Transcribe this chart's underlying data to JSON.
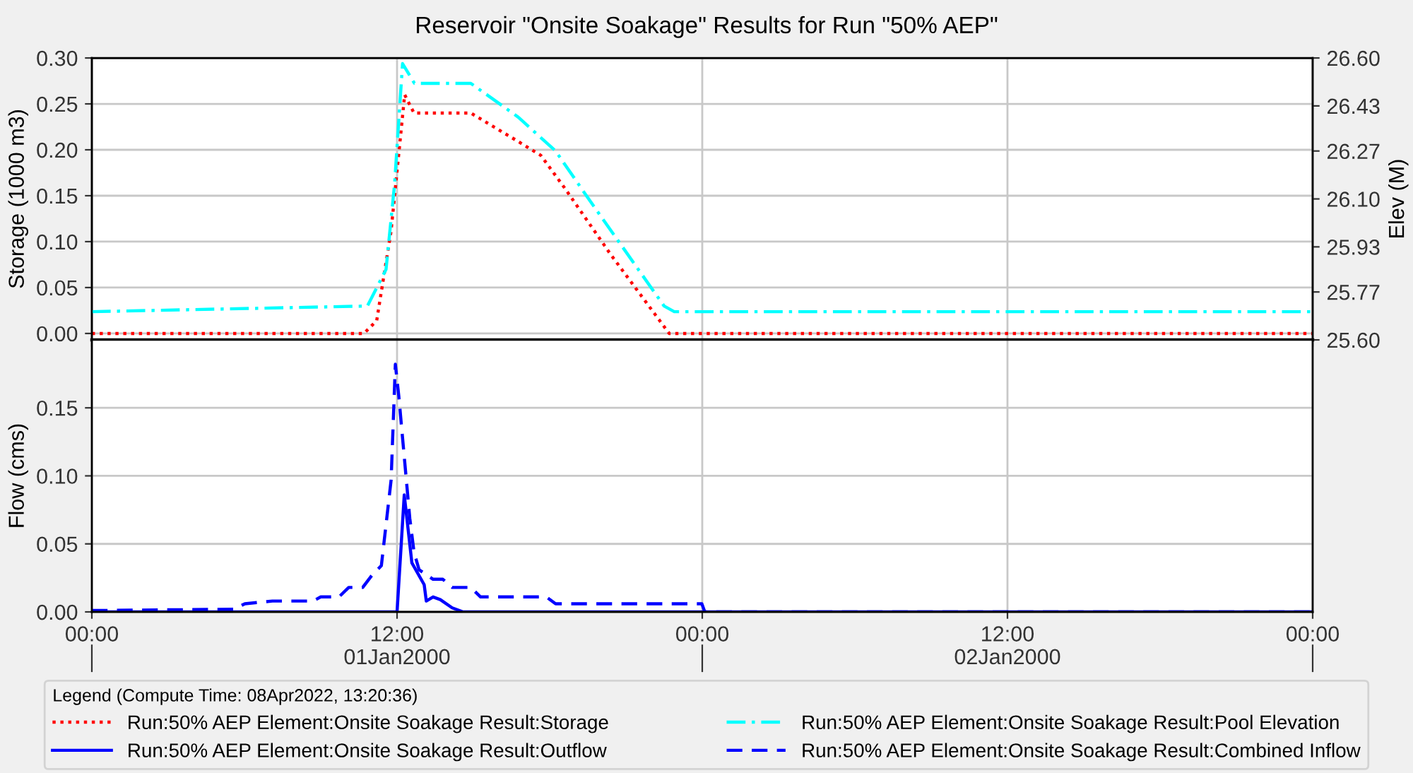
{
  "chart_data": [
    {
      "type": "line",
      "title": "Reservoir \"Onsite Soakage\" Results for Run \"50% AEP\"",
      "ylabel": "Storage (1000 m3)",
      "y2label": "Elev (M)",
      "xlim": [
        "2000-01-01T00:00",
        "2000-01-03T00:00"
      ],
      "xticks": [
        "2000-01-01T00:00",
        "2000-01-01T12:00",
        "2000-01-02T00:00",
        "2000-01-02T12:00",
        "2000-01-03T00:00"
      ],
      "ylim": [
        -0.007,
        0.3
      ],
      "yticks": [
        {
          "value": 0,
          "label": "0.00"
        },
        {
          "value": 0.05,
          "label": "0.05"
        },
        {
          "value": 0.1,
          "label": "0.10"
        },
        {
          "value": 0.15,
          "label": "0.15"
        },
        {
          "value": 0.2,
          "label": "0.20"
        },
        {
          "value": 0.25,
          "label": "0.25"
        },
        {
          "value": 0.3,
          "label": "0.30"
        }
      ],
      "y2lim": [
        25.6,
        26.6
      ],
      "y2ticks": [
        {
          "value": 25.6,
          "label": "25.60"
        },
        25.77,
        25.93,
        {
          "value": 26.1,
          "label": "26.10"
        },
        26.27,
        26.43,
        {
          "value": 26.6,
          "label": "26.60"
        }
      ],
      "tick_labels": "y",
      "grid": true,
      "legend": "bottom",
      "legend_title": "Legend (Compute Time: 08Apr2022, 13:20:36)",
      "series": [
        {
          "name": "Run:50% AEP Element:Onsite Soakage Result:Storage",
          "color": "#ff0000",
          "line_style": "dotted",
          "x": [
            "2000-01-01T00:00",
            "2000-01-01T10:42",
            "2000-01-01T11:12",
            "2000-01-01T11:46",
            "2000-01-01T12:18",
            "2000-01-01T12:40",
            "2000-01-01T14:54",
            "2000-01-01T16:46",
            "2000-01-01T17:39",
            "2000-01-01T18:36",
            "2000-01-01T20:24",
            "2000-01-01T22:42",
            "2000-01-03T00:00"
          ],
          "values": [
            0,
            0,
            0.014,
            0.112,
            0.26,
            0.24,
            0.24,
            0.209,
            0.194,
            0.158,
            0.086,
            0,
            0
          ]
        },
        {
          "name": "Run:50% AEP Element:Onsite Soakage Result:Pool Elevation",
          "color": "#00ffff",
          "line_style": "dashdot",
          "axis": "y2",
          "x": [
            "2000-01-01T00:00",
            "2000-01-01T10:50",
            "2000-01-01T11:34",
            "2000-01-01T11:54",
            "2000-01-01T12:13",
            "2000-01-01T12:41",
            "2000-01-01T14:54",
            "2000-01-01T16:46",
            "2000-01-01T18:14",
            "2000-01-01T19:32",
            "2000-01-01T22:30",
            "2000-01-01T22:54",
            "2000-01-03T00:00"
          ],
          "values": [
            25.7,
            25.72,
            25.85,
            26.15,
            26.58,
            26.51,
            26.51,
            26.39,
            26.27,
            26.1,
            25.72,
            25.7,
            25.7
          ]
        }
      ]
    },
    {
      "type": "line",
      "ylabel": "Flow (cms)",
      "xlim": [
        "2000-01-01T00:00",
        "2000-01-03T00:00"
      ],
      "xticks": [
        {
          "value": "2000-01-01T00:00",
          "label": "00:00"
        },
        {
          "value": "2000-01-01T12:00",
          "label": "12:00"
        },
        {
          "value": "2000-01-02T00:00",
          "label": "00:00"
        },
        {
          "value": "2000-01-02T12:00",
          "label": "12:00"
        },
        {
          "value": "2000-01-03T00:00",
          "label": "00:00"
        }
      ],
      "x2lim": [
        "2000-01-01T00:00",
        "2000-01-03T00:00"
      ],
      "x2ticks": [
        {
          "value": "2000-01-01T00:00",
          "label": null
        },
        {
          "value": "2000-01-01T12:00",
          "label": "01Jan2000"
        },
        {
          "value": "2000-01-02T00:00",
          "label": null
        },
        {
          "value": "2000-01-02T12:00",
          "label": "02Jan2000"
        },
        {
          "value": "2000-01-03T00:00",
          "label": null
        }
      ],
      "ylim": [
        0,
        0.2
      ],
      "yticks": [
        {
          "value": 0,
          "label": "0.00"
        },
        {
          "value": 0.05,
          "label": "0.05"
        },
        {
          "value": 0.1,
          "label": "0.10"
        },
        {
          "value": 0.15,
          "label": "0.15"
        }
      ],
      "grid": true,
      "legend": "bottom",
      "series": [
        {
          "name": "Run:50% AEP Element:Onsite Soakage Result:Outflow",
          "color": "#0000ff",
          "line_style": "solid",
          "x": [
            "2000-01-01T00:00",
            "2000-01-01T12:00",
            "2000-01-01T12:17",
            "2000-01-01T12:35",
            "2000-01-01T13:04",
            "2000-01-01T13:09",
            "2000-01-01T13:25",
            "2000-01-01T13:42",
            "2000-01-01T14:10",
            "2000-01-01T14:36",
            "2000-01-03T00:00"
          ],
          "values": [
            0,
            0,
            0.086,
            0.036,
            0.02,
            0.008,
            0.011,
            0.009,
            0.003,
            0,
            0
          ]
        },
        {
          "name": "Run:50% AEP Element:Onsite Soakage Result:Combined Inflow",
          "color": "#0000ff",
          "line_style": "dashed",
          "x": [
            "2000-01-01T00:00",
            "2000-01-01T05:36",
            "2000-01-01T06:01",
            "2000-01-01T07:06",
            "2000-01-01T08:42",
            "2000-01-01T09:00",
            "2000-01-01T09:43",
            "2000-01-01T10:06",
            "2000-01-01T10:39",
            "2000-01-01T11:01",
            "2000-01-01T11:23",
            "2000-01-01T11:46",
            "2000-01-01T11:56",
            "2000-01-01T12:04",
            "2000-01-01T12:30",
            "2000-01-01T12:40",
            "2000-01-01T12:52",
            "2000-01-01T13:25",
            "2000-01-01T13:48",
            "2000-01-01T14:10",
            "2000-01-01T14:54",
            "2000-01-01T15:17",
            "2000-01-01T17:52",
            "2000-01-01T18:14",
            "2000-01-01T23:59",
            "2000-01-02T00:06",
            "2000-01-03T00:00"
          ],
          "values": [
            0.001,
            0.002,
            0.006,
            0.008,
            0.008,
            0.011,
            0.011,
            0.018,
            0.018,
            0.027,
            0.034,
            0.097,
            0.182,
            0.159,
            0.069,
            0.044,
            0.031,
            0.024,
            0.024,
            0.018,
            0.018,
            0.011,
            0.011,
            0.006,
            0.006,
            0,
            0
          ]
        }
      ]
    }
  ]
}
